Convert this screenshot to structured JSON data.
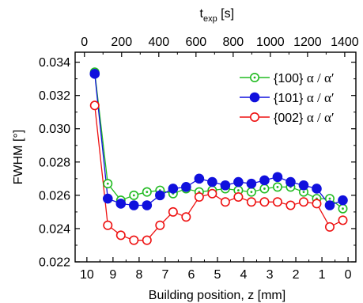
{
  "chart_data": {
    "type": "line",
    "ylabel": "FWHM [°]",
    "xlabel": "Building position, z [mm]",
    "top_axis": {
      "label_main": "t",
      "label_sub": "exp",
      "label_unit": " [s]",
      "ticks": [
        "0",
        "200",
        "400",
        "600",
        "800",
        "1000",
        "1200",
        "1400"
      ],
      "tick_values": [
        0,
        200,
        400,
        600,
        800,
        1000,
        1200,
        1400
      ]
    },
    "x_ticks": [
      "10",
      "9",
      "8",
      "7",
      "6",
      "5",
      "4",
      "3",
      "2",
      "1",
      "0"
    ],
    "x_tick_values": [
      10,
      9,
      8,
      7,
      6,
      5,
      4,
      3,
      2,
      1,
      0
    ],
    "y_ticks": [
      "0.022",
      "0.024",
      "0.026",
      "0.028",
      "0.030",
      "0.032",
      "0.034"
    ],
    "y_tick_values": [
      0.022,
      0.024,
      0.026,
      0.028,
      0.03,
      0.032,
      0.034
    ],
    "xlim": [
      10.45,
      -0.3
    ],
    "ylim": [
      0.022,
      0.0346
    ],
    "top_xlim": [
      -50,
      1460
    ],
    "x": [
      9.7,
      9.2,
      8.7,
      8.2,
      7.7,
      7.2,
      6.7,
      6.2,
      5.7,
      5.2,
      4.7,
      4.2,
      3.7,
      3.2,
      2.7,
      2.2,
      1.7,
      1.2,
      0.7,
      0.2
    ],
    "series": [
      {
        "label_main": "{100} ",
        "label_greek": "α / α′",
        "color": "#22bb22",
        "marker": "open-dot",
        "values": [
          0.0334,
          0.0267,
          0.0257,
          0.026,
          0.0262,
          0.0263,
          0.0261,
          0.0264,
          0.0262,
          0.0263,
          0.0264,
          0.0263,
          0.0262,
          0.0264,
          0.0265,
          0.0265,
          0.0262,
          0.0258,
          0.0258,
          0.0252
        ]
      },
      {
        "label_main": "{101} ",
        "label_greek": "α / α′",
        "color": "#1010dd",
        "marker": "filled",
        "values": [
          0.0333,
          0.0258,
          0.0255,
          0.0254,
          0.0254,
          0.026,
          0.0264,
          0.0265,
          0.027,
          0.0268,
          0.0266,
          0.0268,
          0.0267,
          0.0269,
          0.0271,
          0.0268,
          0.0266,
          0.0264,
          0.0254,
          0.0257
        ]
      },
      {
        "label_main": "{002} ",
        "label_greek": "α / α′",
        "color": "#ee1111",
        "marker": "open",
        "values": [
          0.0314,
          0.0242,
          0.0236,
          0.0233,
          0.0233,
          0.0242,
          0.025,
          0.0247,
          0.0259,
          0.0261,
          0.0256,
          0.0259,
          0.0256,
          0.0256,
          0.0256,
          0.0254,
          0.0256,
          0.0255,
          0.0241,
          0.0245
        ]
      }
    ],
    "grid": false,
    "legend_position": "top-right"
  }
}
